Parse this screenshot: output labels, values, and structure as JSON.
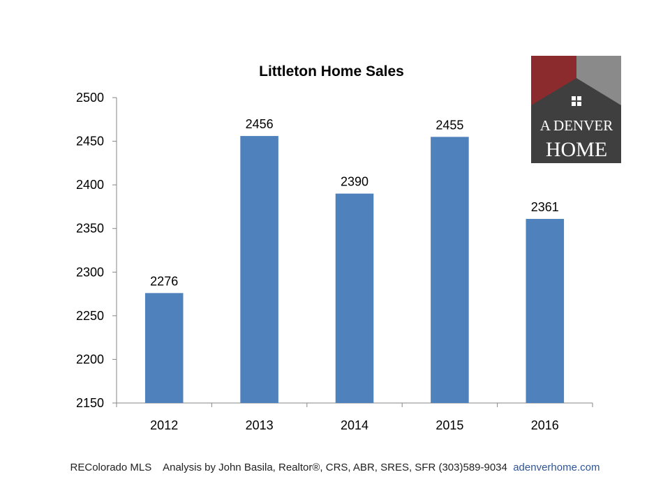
{
  "chart_data": {
    "type": "bar",
    "title": "Littleton Home Sales",
    "categories": [
      "2012",
      "2013",
      "2014",
      "2015",
      "2016"
    ],
    "values": [
      2276,
      2456,
      2390,
      2455,
      2361
    ],
    "ylim": [
      2150,
      2500
    ],
    "yticks": [
      2150,
      2200,
      2250,
      2300,
      2350,
      2400,
      2450,
      2500
    ],
    "bar_color": "#4f81bd",
    "data_labels": true,
    "legend": "none",
    "grid": false
  },
  "logo": {
    "line1": "A DENVER",
    "line2": "HOME",
    "colors": {
      "roof_left": "#8b2b2e",
      "roof_right": "#8a8a8a",
      "body": "#3f3f3f"
    }
  },
  "footer": {
    "source": "REColorado MLS",
    "credit": "Analysis by John Basila, Realtor®, CRS, ABR, SRES, SFR  (303)589-9034",
    "website": "adenverhome.com"
  }
}
